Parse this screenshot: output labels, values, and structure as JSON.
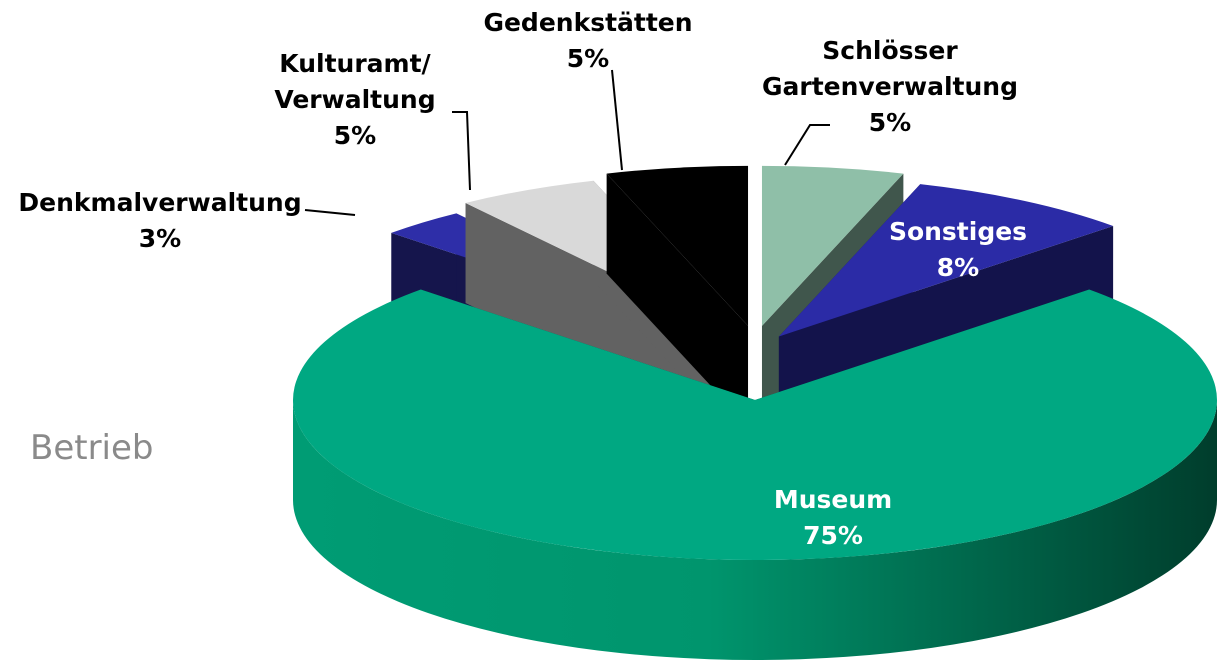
{
  "chart_data": {
    "type": "pie3d",
    "annotation": "Betrieb",
    "categories": [
      "Museum",
      "Denkmalverwaltung",
      "Kulturamt/\nVerwaltung",
      "Gedenkstätten",
      "Schlösser\nGartenverwaltung",
      "Sonstiges"
    ],
    "values": [
      75,
      3,
      5,
      5,
      5,
      8
    ],
    "value_labels": [
      "75%",
      "3%",
      "5%",
      "5%",
      "5%",
      "8%"
    ],
    "colors": [
      "#00a882",
      "#2e2ea8",
      "#d9d9d9",
      "#000000",
      "#8fbfa8",
      "#2b2ba6"
    ]
  }
}
